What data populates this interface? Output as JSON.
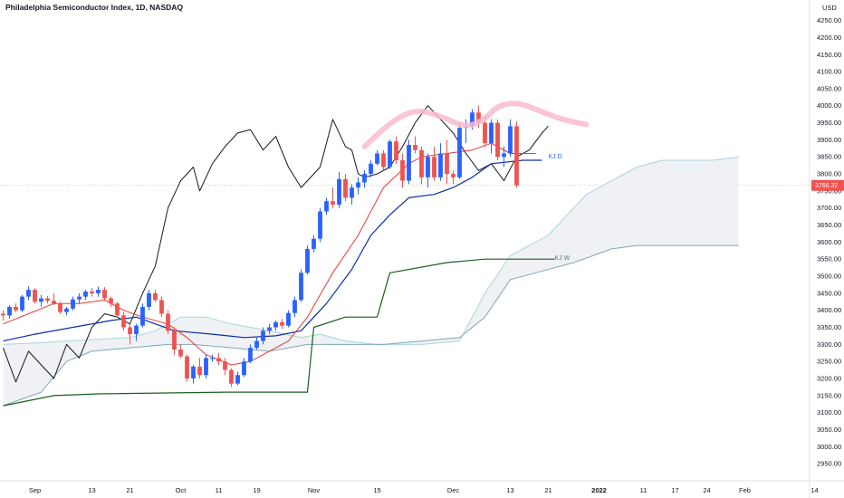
{
  "header": {
    "title": "Philadelphia Semiconductor Index, 1D, NASDAQ",
    "currency": "USD"
  },
  "colors": {
    "bull": "#2962ff",
    "bear": "#ef5350",
    "tenkan": "#e53935",
    "kijun_daily": "#0d2ca8",
    "kijun_weekly": "#1b5e20",
    "lagging": "#131722",
    "cloud_fill": "#e0e3eb",
    "cloud_edge": "#7fa7b7",
    "arc": "#f8bbd0",
    "price_line": "#f28b82"
  },
  "chart_data": {
    "type": "candlestick",
    "title": "Philadelphia Semiconductor Index, 1D, NASDAQ",
    "ylim": [
      2900,
      4310
    ],
    "y_ticks": [
      2950,
      3000,
      3050,
      3100,
      3150,
      3200,
      3250,
      3300,
      3350,
      3400,
      3450,
      3500,
      3550,
      3600,
      3650,
      3700,
      3750,
      3800,
      3850,
      3900,
      3950,
      4000,
      4050,
      4100,
      4150,
      4200,
      4250
    ],
    "y_tick_labels": [
      "2950.00",
      "3000.00",
      "3050.00",
      "3100.00",
      "3150.00",
      "3200.00",
      "3250.00",
      "3300.00",
      "3350.00",
      "3400.00",
      "3450.00",
      "3500.00",
      "3550.00",
      "3600.00",
      "3650.00",
      "3700.00",
      "3750.00",
      "3800.00",
      "3850.00",
      "3900.00",
      "3950.00",
      "4000.00",
      "4050.00",
      "4100.00",
      "4150.00",
      "4200.00",
      "4250.00"
    ],
    "x_ticks": [
      {
        "label": "Sep",
        "i": 5,
        "bold": false
      },
      {
        "label": "13",
        "i": 14,
        "bold": false
      },
      {
        "label": "21",
        "i": 20,
        "bold": false
      },
      {
        "label": "Oct",
        "i": 28,
        "bold": false
      },
      {
        "label": "11",
        "i": 34,
        "bold": false
      },
      {
        "label": "19",
        "i": 40,
        "bold": false
      },
      {
        "label": "Nov",
        "i": 49,
        "bold": false
      },
      {
        "label": "15",
        "i": 59,
        "bold": false
      },
      {
        "label": "Dec",
        "i": 71,
        "bold": false
      },
      {
        "label": "13",
        "i": 80,
        "bold": false
      },
      {
        "label": "21",
        "i": 86,
        "bold": false
      },
      {
        "label": "2022",
        "i": 94,
        "bold": true
      },
      {
        "label": "11",
        "i": 101,
        "bold": false
      },
      {
        "label": "17",
        "i": 106,
        "bold": false
      },
      {
        "label": "24",
        "i": 111,
        "bold": false
      },
      {
        "label": "Feb",
        "i": 117,
        "bold": false
      },
      {
        "label": "14",
        "i": 128,
        "bold": false
      }
    ],
    "candles": [
      [
        3390,
        3400,
        3370,
        3385
      ],
      [
        3385,
        3415,
        3375,
        3410
      ],
      [
        3410,
        3420,
        3395,
        3400
      ],
      [
        3400,
        3445,
        3395,
        3440
      ],
      [
        3440,
        3470,
        3430,
        3460
      ],
      [
        3460,
        3465,
        3420,
        3425
      ],
      [
        3425,
        3445,
        3410,
        3435
      ],
      [
        3435,
        3442,
        3420,
        3428
      ],
      [
        3428,
        3450,
        3415,
        3420
      ],
      [
        3420,
        3425,
        3390,
        3395
      ],
      [
        3395,
        3410,
        3385,
        3405
      ],
      [
        3405,
        3440,
        3400,
        3432
      ],
      [
        3432,
        3450,
        3420,
        3440
      ],
      [
        3440,
        3460,
        3430,
        3455
      ],
      [
        3455,
        3465,
        3440,
        3450
      ],
      [
        3450,
        3470,
        3440,
        3460
      ],
      [
        3460,
        3468,
        3430,
        3435
      ],
      [
        3435,
        3440,
        3410,
        3420
      ],
      [
        3420,
        3425,
        3380,
        3385
      ],
      [
        3385,
        3395,
        3340,
        3350
      ],
      [
        3350,
        3360,
        3300,
        3330
      ],
      [
        3330,
        3360,
        3310,
        3355
      ],
      [
        3355,
        3420,
        3350,
        3410
      ],
      [
        3410,
        3460,
        3400,
        3450
      ],
      [
        3450,
        3460,
        3425,
        3430
      ],
      [
        3430,
        3440,
        3380,
        3390
      ],
      [
        3390,
        3400,
        3330,
        3340
      ],
      [
        3340,
        3350,
        3270,
        3285
      ],
      [
        3285,
        3300,
        3260,
        3265
      ],
      [
        3265,
        3270,
        3190,
        3200
      ],
      [
        3200,
        3240,
        3185,
        3235
      ],
      [
        3235,
        3260,
        3200,
        3210
      ],
      [
        3210,
        3270,
        3200,
        3260
      ],
      [
        3260,
        3270,
        3250,
        3260
      ],
      [
        3260,
        3275,
        3240,
        3250
      ],
      [
        3250,
        3260,
        3210,
        3225
      ],
      [
        3225,
        3230,
        3175,
        3185
      ],
      [
        3185,
        3220,
        3180,
        3210
      ],
      [
        3210,
        3260,
        3205,
        3250
      ],
      [
        3250,
        3300,
        3245,
        3290
      ],
      [
        3290,
        3320,
        3285,
        3310
      ],
      [
        3310,
        3350,
        3300,
        3340
      ],
      [
        3340,
        3360,
        3330,
        3350
      ],
      [
        3350,
        3370,
        3340,
        3365
      ],
      [
        3365,
        3375,
        3345,
        3355
      ],
      [
        3355,
        3400,
        3350,
        3392
      ],
      [
        3392,
        3440,
        3380,
        3430
      ],
      [
        3430,
        3520,
        3425,
        3510
      ],
      [
        3510,
        3590,
        3505,
        3580
      ],
      [
        3580,
        3620,
        3570,
        3610
      ],
      [
        3610,
        3700,
        3600,
        3690
      ],
      [
        3690,
        3730,
        3680,
        3720
      ],
      [
        3720,
        3760,
        3700,
        3710
      ],
      [
        3710,
        3805,
        3700,
        3785
      ],
      [
        3785,
        3800,
        3720,
        3730
      ],
      [
        3730,
        3770,
        3710,
        3760
      ],
      [
        3760,
        3790,
        3740,
        3775
      ],
      [
        3775,
        3810,
        3760,
        3800
      ],
      [
        3800,
        3840,
        3790,
        3830
      ],
      [
        3830,
        3870,
        3825,
        3860
      ],
      [
        3860,
        3870,
        3810,
        3820
      ],
      [
        3820,
        3900,
        3815,
        3895
      ],
      [
        3895,
        3910,
        3830,
        3840
      ],
      [
        3840,
        3860,
        3760,
        3780
      ],
      [
        3780,
        3900,
        3770,
        3885
      ],
      [
        3885,
        3910,
        3860,
        3870
      ],
      [
        3870,
        3880,
        3770,
        3790
      ],
      [
        3790,
        3860,
        3760,
        3850
      ],
      [
        3850,
        3880,
        3780,
        3790
      ],
      [
        3790,
        3890,
        3780,
        3860
      ],
      [
        3860,
        3900,
        3770,
        3800
      ],
      [
        3800,
        3810,
        3770,
        3790
      ],
      [
        3790,
        3950,
        3785,
        3935
      ],
      [
        3935,
        3960,
        3890,
        3940
      ],
      [
        3940,
        3990,
        3930,
        3980
      ],
      [
        3980,
        4000,
        3935,
        3950
      ],
      [
        3950,
        3970,
        3880,
        3890
      ],
      [
        3890,
        3960,
        3860,
        3950
      ],
      [
        3950,
        3960,
        3840,
        3850
      ],
      [
        3850,
        3880,
        3820,
        3860
      ],
      [
        3860,
        3960,
        3850,
        3940
      ],
      [
        3940,
        3955,
        3760,
        3766.32
      ]
    ],
    "tenkan": [
      [
        0,
        3360
      ],
      [
        4,
        3390
      ],
      [
        8,
        3420
      ],
      [
        12,
        3420
      ],
      [
        16,
        3430
      ],
      [
        19,
        3400
      ],
      [
        22,
        3380
      ],
      [
        26,
        3360
      ],
      [
        29,
        3320
      ],
      [
        32,
        3270
      ],
      [
        36,
        3240
      ],
      [
        39,
        3250
      ],
      [
        42,
        3280
      ],
      [
        45,
        3310
      ],
      [
        48,
        3380
      ],
      [
        52,
        3510
      ],
      [
        56,
        3620
      ],
      [
        60,
        3760
      ],
      [
        64,
        3830
      ],
      [
        66,
        3850
      ],
      [
        70,
        3860
      ],
      [
        74,
        3870
      ],
      [
        77,
        3890
      ],
      [
        80,
        3860
      ],
      [
        84,
        3860
      ]
    ],
    "kijun_daily": [
      [
        0,
        3310
      ],
      [
        5,
        3330
      ],
      [
        11,
        3350
      ],
      [
        17,
        3370
      ],
      [
        21,
        3380
      ],
      [
        27,
        3340
      ],
      [
        33,
        3330
      ],
      [
        38,
        3320
      ],
      [
        43,
        3325
      ],
      [
        47,
        3340
      ],
      [
        51,
        3420
      ],
      [
        55,
        3520
      ],
      [
        58,
        3620
      ],
      [
        61,
        3680
      ],
      [
        64,
        3730
      ],
      [
        68,
        3740
      ],
      [
        71,
        3760
      ],
      [
        74,
        3790
      ],
      [
        77,
        3830
      ],
      [
        82,
        3840
      ],
      [
        85,
        3840
      ]
    ],
    "kijun_weekly": [
      [
        0,
        3120
      ],
      [
        8,
        3150
      ],
      [
        15,
        3155
      ],
      [
        35,
        3160
      ],
      [
        48,
        3160
      ],
      [
        49,
        3350
      ],
      [
        54,
        3380
      ],
      [
        59,
        3380
      ],
      [
        61,
        3510
      ],
      [
        70,
        3540
      ],
      [
        76,
        3550
      ],
      [
        87,
        3550
      ]
    ],
    "lagging": [
      [
        0,
        3290
      ],
      [
        2,
        3190
      ],
      [
        4,
        3280
      ],
      [
        6,
        3240
      ],
      [
        8,
        3200
      ],
      [
        10,
        3300
      ],
      [
        12,
        3260
      ],
      [
        14,
        3350
      ],
      [
        16,
        3390
      ],
      [
        18,
        3380
      ],
      [
        20,
        3360
      ],
      [
        22,
        3450
      ],
      [
        24,
        3530
      ],
      [
        26,
        3700
      ],
      [
        28,
        3780
      ],
      [
        30,
        3820
      ],
      [
        31,
        3750
      ],
      [
        33,
        3830
      ],
      [
        35,
        3880
      ],
      [
        37,
        3920
      ],
      [
        39,
        3930
      ],
      [
        41,
        3870
      ],
      [
        43,
        3910
      ],
      [
        45,
        3820
      ],
      [
        47,
        3760
      ],
      [
        49,
        3800
      ],
      [
        50,
        3820
      ],
      [
        52,
        3960
      ],
      [
        54,
        3880
      ],
      [
        55,
        3870
      ],
      [
        56,
        3800
      ],
      [
        57,
        3790
      ],
      [
        59,
        3800
      ],
      [
        61,
        3820
      ],
      [
        63,
        3880
      ],
      [
        65,
        3950
      ],
      [
        67,
        4000
      ],
      [
        69,
        3960
      ],
      [
        71,
        3920
      ],
      [
        73,
        3860
      ],
      [
        75,
        3810
      ],
      [
        77,
        3830
      ],
      [
        79,
        3780
      ],
      [
        81,
        3850
      ],
      [
        83,
        3870
      ],
      [
        85,
        3920
      ],
      [
        86,
        3940
      ]
    ],
    "cloud_upper": [
      [
        0,
        3300
      ],
      [
        6,
        3305
      ],
      [
        10,
        3310
      ],
      [
        20,
        3320
      ],
      [
        24,
        3340
      ],
      [
        28,
        3380
      ],
      [
        32,
        3380
      ],
      [
        36,
        3360
      ],
      [
        42,
        3340
      ],
      [
        47,
        3320
      ],
      [
        50,
        3330
      ],
      [
        54,
        3310
      ],
      [
        59,
        3300
      ],
      [
        66,
        3300
      ],
      [
        72,
        3310
      ],
      [
        76,
        3450
      ],
      [
        80,
        3560
      ],
      [
        86,
        3620
      ],
      [
        92,
        3740
      ],
      [
        100,
        3820
      ],
      [
        104,
        3840
      ],
      [
        112,
        3840
      ],
      [
        116,
        3850
      ]
    ],
    "cloud_lower": [
      [
        0,
        3120
      ],
      [
        6,
        3160
      ],
      [
        10,
        3250
      ],
      [
        14,
        3280
      ],
      [
        20,
        3290
      ],
      [
        26,
        3300
      ],
      [
        30,
        3300
      ],
      [
        36,
        3290
      ],
      [
        42,
        3280
      ],
      [
        48,
        3300
      ],
      [
        54,
        3300
      ],
      [
        60,
        3300
      ],
      [
        66,
        3310
      ],
      [
        72,
        3320
      ],
      [
        76,
        3380
      ],
      [
        80,
        3490
      ],
      [
        84,
        3510
      ],
      [
        90,
        3540
      ],
      [
        96,
        3580
      ],
      [
        100,
        3590
      ],
      [
        106,
        3590
      ],
      [
        116,
        3590
      ]
    ],
    "current_price": 3766.32,
    "current_price_label": "3766.32",
    "arc": [
      [
        57,
        3880
      ],
      [
        61,
        3950
      ],
      [
        65,
        3990
      ],
      [
        69,
        3970
      ],
      [
        73,
        3935
      ],
      [
        76,
        3960
      ],
      [
        78,
        4000
      ],
      [
        81,
        4010
      ],
      [
        84,
        3990
      ],
      [
        88,
        3960
      ],
      [
        92,
        3945
      ]
    ],
    "annotations": [
      {
        "text": "KJ D",
        "i": 86,
        "y": 3850,
        "color": "#2962ff"
      },
      {
        "text": "KJ W",
        "i": 87,
        "y": 3553,
        "color": "#4e7a8a"
      }
    ]
  }
}
